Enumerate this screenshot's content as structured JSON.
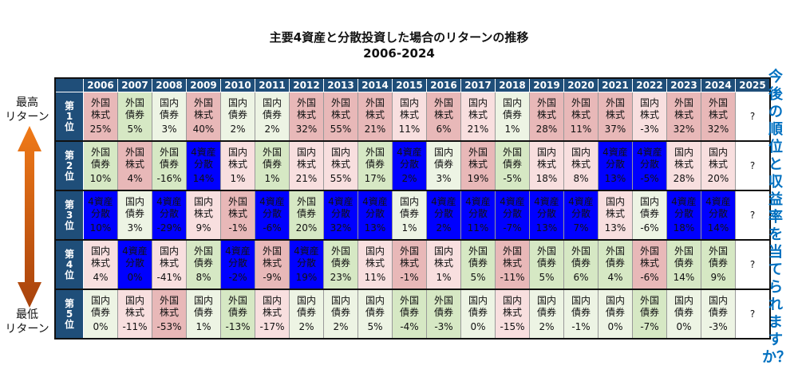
{
  "title_line1": "主要4資産と分散投資した場合のリターンの推移",
  "title_line2": "2006-2024",
  "top_label": "最高\nリターン",
  "bottom_label": "最低\nリターン",
  "cta": "今後の順位と収益率を当てられますか？",
  "colors": {
    "header": "#1f4e79",
    "外国株式": "#e8b8b8",
    "国内株式": "#f8dfdf",
    "外国債券": "#d6e8c4",
    "国内債券": "#edf4e4",
    "4資産分散": "#0000ff",
    "arrow_top": "#f07a18",
    "arrow_bottom": "#a8420c",
    "cta": "#0070c0"
  },
  "rank_labels": [
    "第\n1\n位",
    "第\n2\n位",
    "第\n3\n位",
    "第\n4\n位",
    "第\n5\n位"
  ],
  "unknown_mark": "?",
  "chart_data": {
    "type": "table",
    "years": [
      "2006",
      "2007",
      "2008",
      "2009",
      "2010",
      "2011",
      "2012",
      "2013",
      "2014",
      "2015",
      "2016",
      "2017",
      "2018",
      "2019",
      "2020",
      "2021",
      "2022",
      "2023",
      "2024",
      "2025"
    ],
    "asset_classes": [
      "外国株式",
      "国内株式",
      "外国債券",
      "国内債券",
      "4資産分散"
    ],
    "ranks": [
      {
        "rank": 1,
        "cells": [
          {
            "asset": "外国株式",
            "ret": "25%"
          },
          {
            "asset": "外国債券",
            "ret": "5%"
          },
          {
            "asset": "国内債券",
            "ret": "3%"
          },
          {
            "asset": "外国株式",
            "ret": "40%"
          },
          {
            "asset": "国内債券",
            "ret": "2%"
          },
          {
            "asset": "国内債券",
            "ret": "2%"
          },
          {
            "asset": "外国株式",
            "ret": "32%"
          },
          {
            "asset": "外国株式",
            "ret": "55%"
          },
          {
            "asset": "外国株式",
            "ret": "21%"
          },
          {
            "asset": "国内株式",
            "ret": "11%"
          },
          {
            "asset": "外国株式",
            "ret": "6%"
          },
          {
            "asset": "国内株式",
            "ret": "21%"
          },
          {
            "asset": "国内債券",
            "ret": "1%"
          },
          {
            "asset": "外国株式",
            "ret": "28%"
          },
          {
            "asset": "外国株式",
            "ret": "11%"
          },
          {
            "asset": "外国株式",
            "ret": "37%"
          },
          {
            "asset": "国内株式",
            "ret": "-3%"
          },
          {
            "asset": "外国株式",
            "ret": "32%"
          },
          {
            "asset": "外国株式",
            "ret": "32%"
          }
        ]
      },
      {
        "rank": 2,
        "cells": [
          {
            "asset": "外国債券",
            "ret": "10%"
          },
          {
            "asset": "外国株式",
            "ret": "4%"
          },
          {
            "asset": "外国債券",
            "ret": "-16%"
          },
          {
            "asset": "4資産分散",
            "ret": "14%"
          },
          {
            "asset": "国内株式",
            "ret": "1%"
          },
          {
            "asset": "外国債券",
            "ret": "1%"
          },
          {
            "asset": "国内株式",
            "ret": "21%"
          },
          {
            "asset": "国内株式",
            "ret": "55%"
          },
          {
            "asset": "外国債券",
            "ret": "17%"
          },
          {
            "asset": "4資産分散",
            "ret": "2%"
          },
          {
            "asset": "国内債券",
            "ret": "3%"
          },
          {
            "asset": "外国株式",
            "ret": "19%"
          },
          {
            "asset": "外国債券",
            "ret": "-5%"
          },
          {
            "asset": "国内株式",
            "ret": "18%"
          },
          {
            "asset": "国内株式",
            "ret": "8%"
          },
          {
            "asset": "4資産分散",
            "ret": "13%"
          },
          {
            "asset": "4資産分散",
            "ret": "-5%"
          },
          {
            "asset": "国内株式",
            "ret": "28%"
          },
          {
            "asset": "国内株式",
            "ret": "20%"
          }
        ]
      },
      {
        "rank": 3,
        "cells": [
          {
            "asset": "4資産分散",
            "ret": "10%"
          },
          {
            "asset": "国内債券",
            "ret": "3%"
          },
          {
            "asset": "4資産分散",
            "ret": "-29%"
          },
          {
            "asset": "国内株式",
            "ret": "9%"
          },
          {
            "asset": "外国株式",
            "ret": "-1%"
          },
          {
            "asset": "4資産分散",
            "ret": "-6%"
          },
          {
            "asset": "外国債券",
            "ret": "20%"
          },
          {
            "asset": "4資産分散",
            "ret": "32%"
          },
          {
            "asset": "4資産分散",
            "ret": "13%"
          },
          {
            "asset": "国内債券",
            "ret": "1%"
          },
          {
            "asset": "4資産分散",
            "ret": "2%"
          },
          {
            "asset": "4資産分散",
            "ret": "11%"
          },
          {
            "asset": "4資産分散",
            "ret": "-7%"
          },
          {
            "asset": "4資産分散",
            "ret": "13%"
          },
          {
            "asset": "4資産分散",
            "ret": "7%"
          },
          {
            "asset": "国内株式",
            "ret": "13%"
          },
          {
            "asset": "国内債券",
            "ret": "-6%"
          },
          {
            "asset": "4資産分散",
            "ret": "18%"
          },
          {
            "asset": "4資産分散",
            "ret": "14%"
          }
        ]
      },
      {
        "rank": 4,
        "cells": [
          {
            "asset": "国内株式",
            "ret": "4%"
          },
          {
            "asset": "4資産分散",
            "ret": "0%"
          },
          {
            "asset": "国内株式",
            "ret": "-41%"
          },
          {
            "asset": "外国債券",
            "ret": "8%"
          },
          {
            "asset": "4資産分散",
            "ret": "-2%"
          },
          {
            "asset": "外国株式",
            "ret": "-9%"
          },
          {
            "asset": "4資産分散",
            "ret": "19%"
          },
          {
            "asset": "外国債券",
            "ret": "23%"
          },
          {
            "asset": "国内株式",
            "ret": "11%"
          },
          {
            "asset": "外国株式",
            "ret": "-1%"
          },
          {
            "asset": "国内株式",
            "ret": "1%"
          },
          {
            "asset": "外国債券",
            "ret": "5%"
          },
          {
            "asset": "外国株式",
            "ret": "-11%"
          },
          {
            "asset": "外国債券",
            "ret": "5%"
          },
          {
            "asset": "外国債券",
            "ret": "6%"
          },
          {
            "asset": "外国債券",
            "ret": "4%"
          },
          {
            "asset": "外国株式",
            "ret": "-6%"
          },
          {
            "asset": "外国債券",
            "ret": "14%"
          },
          {
            "asset": "外国債券",
            "ret": "9%"
          }
        ]
      },
      {
        "rank": 5,
        "cells": [
          {
            "asset": "国内債券",
            "ret": "0%"
          },
          {
            "asset": "国内株式",
            "ret": "-11%"
          },
          {
            "asset": "外国株式",
            "ret": "-53%"
          },
          {
            "asset": "国内債券",
            "ret": "1%"
          },
          {
            "asset": "外国債券",
            "ret": "-13%"
          },
          {
            "asset": "国内株式",
            "ret": "-17%"
          },
          {
            "asset": "国内債券",
            "ret": "2%"
          },
          {
            "asset": "国内債券",
            "ret": "2%"
          },
          {
            "asset": "国内債券",
            "ret": "5%"
          },
          {
            "asset": "外国債券",
            "ret": "-4%"
          },
          {
            "asset": "外国債券",
            "ret": "-3%"
          },
          {
            "asset": "国内債券",
            "ret": "0%"
          },
          {
            "asset": "国内株式",
            "ret": "-15%"
          },
          {
            "asset": "国内債券",
            "ret": "2%"
          },
          {
            "asset": "国内債券",
            "ret": "-1%"
          },
          {
            "asset": "国内債券",
            "ret": "0%"
          },
          {
            "asset": "外国債券",
            "ret": "-7%"
          },
          {
            "asset": "国内債券",
            "ret": "0%"
          },
          {
            "asset": "国内債券",
            "ret": "-3%"
          }
        ]
      }
    ]
  }
}
